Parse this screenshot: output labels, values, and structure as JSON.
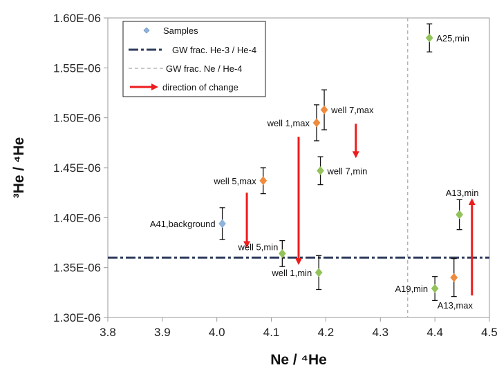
{
  "chart_data": {
    "type": "scatter",
    "xlabel": "Ne / ⁴He",
    "ylabel": "³He / ⁴He",
    "xlim": [
      3.8,
      4.5
    ],
    "ylim": [
      1.3e-06,
      1.6e-06
    ],
    "x_ticks": [
      "3.8",
      "3.9",
      "4.0",
      "4.1",
      "4.2",
      "4.3",
      "4.4",
      "4.5"
    ],
    "y_ticks": [
      "1.30E-06",
      "1.35E-06",
      "1.40E-06",
      "1.45E-06",
      "1.50E-06",
      "1.55E-06",
      "1.60E-06"
    ],
    "grid": false,
    "legend": {
      "placement": "top-left",
      "entries": [
        "Samples",
        "GW frac. He-3 / He-4",
        "GW frac. Ne / He-4",
        "direction of change"
      ]
    },
    "colors": {
      "background": "#8fb3d9",
      "min": "#92c35a",
      "max": "#f08a3c",
      "gw_he": "#2e3b5c",
      "gw_ne": "#b5b5b5",
      "arrow": "#ee1c1c"
    },
    "reference_lines": {
      "gw_he_ratio": 1.36e-06,
      "gw_ne_ratio": 4.35
    },
    "points": [
      {
        "label": "A41,background",
        "x": 4.01,
        "y": 1.394e-06,
        "err": 1.6e-08,
        "kind": "background",
        "label_pos": "left"
      },
      {
        "label": "well 5,max",
        "x": 4.085,
        "y": 1.437e-06,
        "err": 1.3e-08,
        "kind": "max",
        "label_pos": "left"
      },
      {
        "label": "well 5,min",
        "x": 4.12,
        "y": 1.364e-06,
        "err": 1.3e-08,
        "kind": "min",
        "label_pos": "above-left"
      },
      {
        "label": "well 1,max",
        "x": 4.183,
        "y": 1.495e-06,
        "err": 1.8e-08,
        "kind": "max",
        "label_pos": "left"
      },
      {
        "label": "well 1,min",
        "x": 4.187,
        "y": 1.345e-06,
        "err": 1.7e-08,
        "kind": "min",
        "label_pos": "left"
      },
      {
        "label": "well 7,max",
        "x": 4.197,
        "y": 1.508e-06,
        "err": 2e-08,
        "kind": "max",
        "label_pos": "right"
      },
      {
        "label": "well 7,min",
        "x": 4.19,
        "y": 1.447e-06,
        "err": 1.4e-08,
        "kind": "min",
        "label_pos": "right"
      },
      {
        "label": "A25,min",
        "x": 4.39,
        "y": 1.58e-06,
        "err": 1.4e-08,
        "kind": "min",
        "label_pos": "right"
      },
      {
        "label": "A13,min",
        "x": 4.445,
        "y": 1.403e-06,
        "err": 1.5e-08,
        "kind": "min",
        "label_pos": "above"
      },
      {
        "label": "A19,min",
        "x": 4.4,
        "y": 1.329e-06,
        "err": 1.2e-08,
        "kind": "min",
        "label_pos": "left"
      },
      {
        "label": "A13,max",
        "x": 4.435,
        "y": 1.34e-06,
        "err": 1.9e-08,
        "kind": "max",
        "label_pos": "below-right"
      }
    ],
    "arrows": [
      {
        "x": 4.055,
        "y_from": 1.425e-06,
        "y_to": 1.373e-06
      },
      {
        "x": 4.15,
        "y_from": 1.481e-06,
        "y_to": 1.356e-06
      },
      {
        "x": 4.255,
        "y_from": 1.494e-06,
        "y_to": 1.463e-06
      },
      {
        "x": 4.468,
        "y_from": 1.322e-06,
        "y_to": 1.416e-06
      }
    ]
  }
}
